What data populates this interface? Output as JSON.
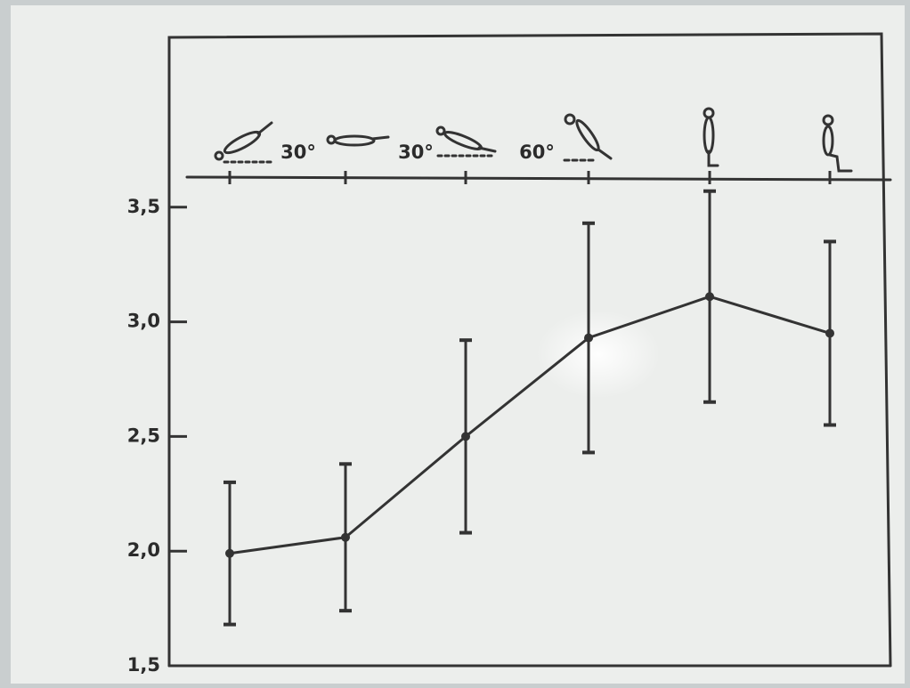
{
  "chart_data": {
    "type": "line",
    "categories": [
      null,
      null,
      null,
      null,
      null,
      null
    ],
    "values": [
      1.99,
      2.06,
      2.5,
      2.93,
      3.11,
      2.95
    ],
    "errors": [
      0.31,
      0.32,
      0.42,
      0.5,
      0.46,
      0.4
    ],
    "color": "#333333",
    "annotations": [
      "30°",
      "30°",
      "60°"
    ],
    "ylim": [
      1.5,
      3.6
    ],
    "yticks": [
      {
        "value": 1.5,
        "label": "1,5"
      },
      {
        "value": 2.0,
        "label": "2,0"
      },
      {
        "value": 2.5,
        "label": "2,5"
      },
      {
        "value": 3.0,
        "label": "3,0"
      },
      {
        "value": 3.5,
        "label": "3,5"
      }
    ]
  }
}
